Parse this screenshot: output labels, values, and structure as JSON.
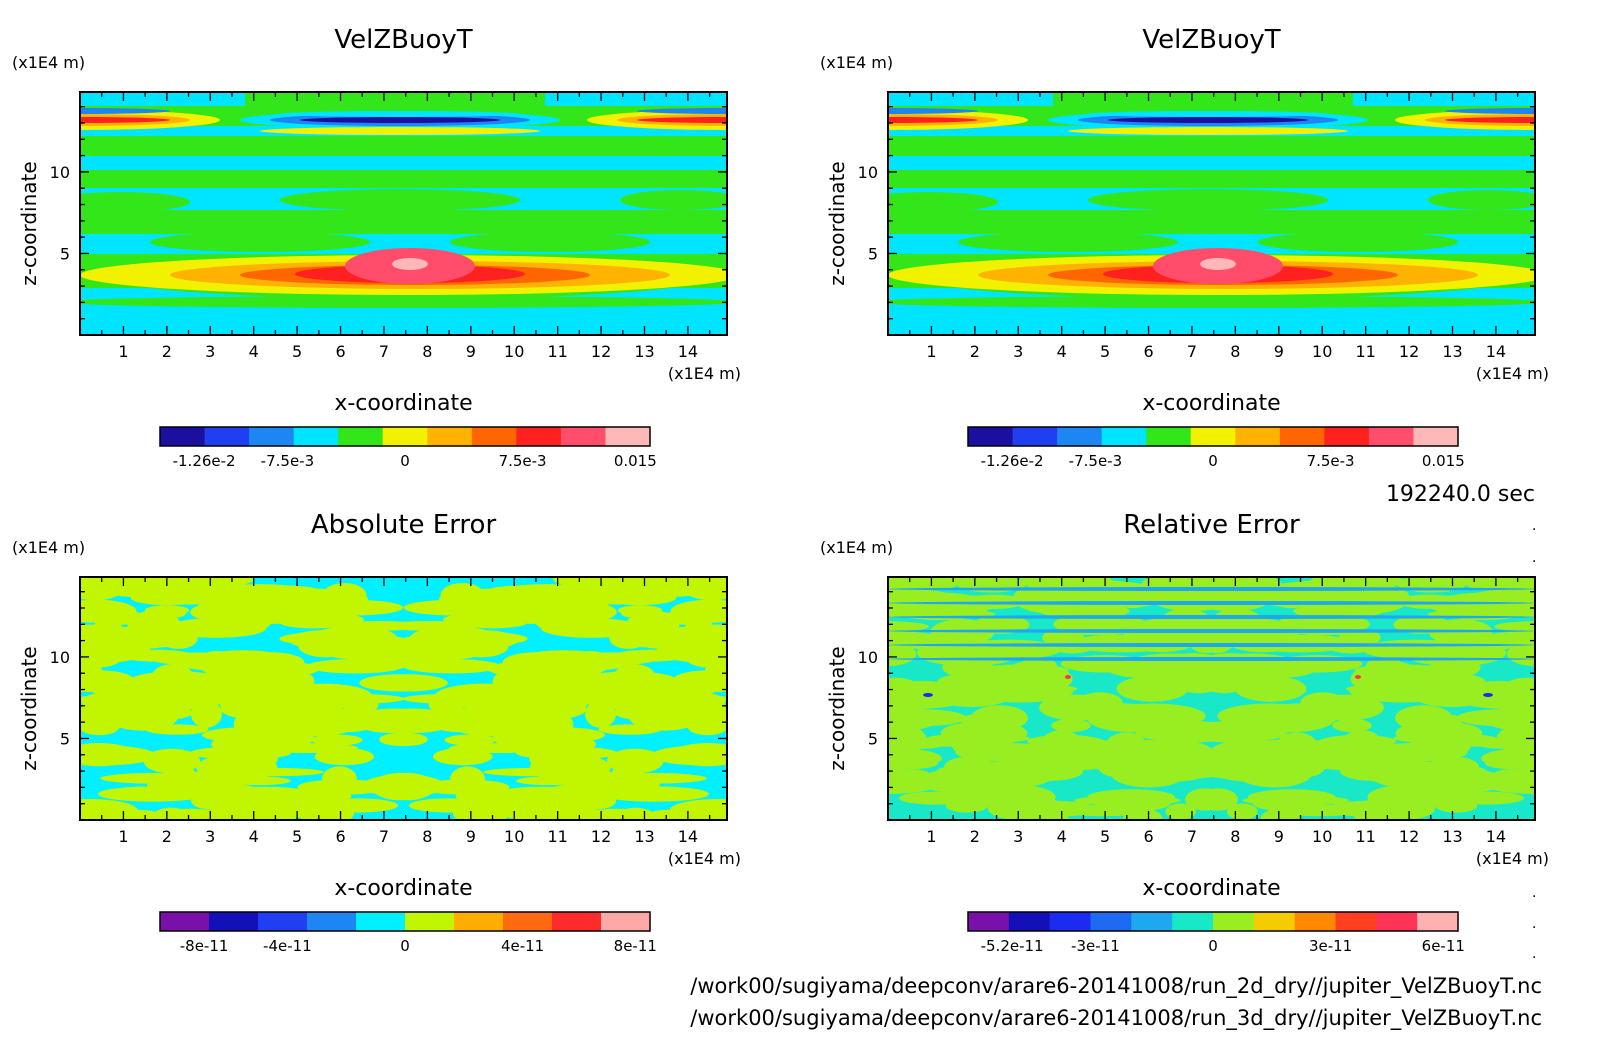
{
  "time_label": "192240.0 sec",
  "files": [
    "/work00/sugiyama/deepconv/arare6-20141008/run_2d_dry//jupiter_VelZBuoyT.nc",
    "/work00/sugiyama/deepconv/arare6-20141008/run_3d_dry//jupiter_VelZBuoyT.nc"
  ],
  "colors": {
    "velz": [
      "#1a0f9e",
      "#1f3ff0",
      "#1e86f2",
      "#00e5ff",
      "#33e619",
      "#f2f200",
      "#ffb300",
      "#ff6600",
      "#ff2020",
      "#ff4d6b",
      "#ffb8b8"
    ],
    "abs": [
      "#7a10aa",
      "#1410b8",
      "#1f3ff0",
      "#1e86f2",
      "#00f0ff",
      "#c2f500",
      "#ffae00",
      "#ff6a10",
      "#ff2a2a",
      "#ffa8a8"
    ],
    "rel": [
      "#7a10aa",
      "#1410b8",
      "#1b2cf0",
      "#1e6af0",
      "#1ea8f0",
      "#19e8c8",
      "#99ee22",
      "#f5cc00",
      "#ff8800",
      "#ff4020",
      "#ff3355",
      "#ffb0b0"
    ]
  },
  "chart_data": [
    {
      "type": "heatmap",
      "title": "VelZBuoyT",
      "xlabel": "x-coordinate",
      "ylabel": "z-coordinate",
      "x_unit": "(x1E4 m)",
      "y_unit": "(x1E4 m)",
      "x_ticks": [
        1,
        2,
        3,
        4,
        5,
        6,
        7,
        8,
        9,
        10,
        11,
        12,
        13,
        14
      ],
      "y_ticks": [
        5,
        10
      ],
      "xlim": [
        0,
        14.9
      ],
      "ylim": [
        0,
        14.9
      ],
      "colorbar_labels": [
        "-1.26e-2",
        "-7.5e-3",
        "0",
        "7.5e-3",
        "0.015"
      ]
    },
    {
      "type": "heatmap",
      "title": "VelZBuoyT",
      "xlabel": "x-coordinate",
      "ylabel": "z-coordinate",
      "x_unit": "(x1E4 m)",
      "y_unit": "(x1E4 m)",
      "x_ticks": [
        1,
        2,
        3,
        4,
        5,
        6,
        7,
        8,
        9,
        10,
        11,
        12,
        13,
        14
      ],
      "y_ticks": [
        5,
        10
      ],
      "xlim": [
        0,
        14.9
      ],
      "ylim": [
        0,
        14.9
      ],
      "colorbar_labels": [
        "-1.26e-2",
        "-7.5e-3",
        "0",
        "7.5e-3",
        "0.015"
      ]
    },
    {
      "type": "heatmap",
      "title": "Absolute Error",
      "xlabel": "x-coordinate",
      "ylabel": "z-coordinate",
      "x_unit": "(x1E4 m)",
      "y_unit": "(x1E4 m)",
      "x_ticks": [
        1,
        2,
        3,
        4,
        5,
        6,
        7,
        8,
        9,
        10,
        11,
        12,
        13,
        14
      ],
      "y_ticks": [
        5,
        10
      ],
      "xlim": [
        0,
        14.9
      ],
      "ylim": [
        0,
        14.9
      ],
      "colorbar_labels": [
        "-8e-11",
        "-4e-11",
        "0",
        "4e-11",
        "8e-11"
      ]
    },
    {
      "type": "heatmap",
      "title": "Relative Error",
      "xlabel": "x-coordinate",
      "ylabel": "z-coordinate",
      "x_unit": "(x1E4 m)",
      "y_unit": "(x1E4 m)",
      "x_ticks": [
        1,
        2,
        3,
        4,
        5,
        6,
        7,
        8,
        9,
        10,
        11,
        12,
        13,
        14
      ],
      "y_ticks": [
        5,
        10
      ],
      "xlim": [
        0,
        14.9
      ],
      "ylim": [
        0,
        14.9
      ],
      "colorbar_labels": [
        "-5.2e-11",
        "-3e-11",
        "0",
        "3e-11",
        "6e-11"
      ]
    }
  ]
}
